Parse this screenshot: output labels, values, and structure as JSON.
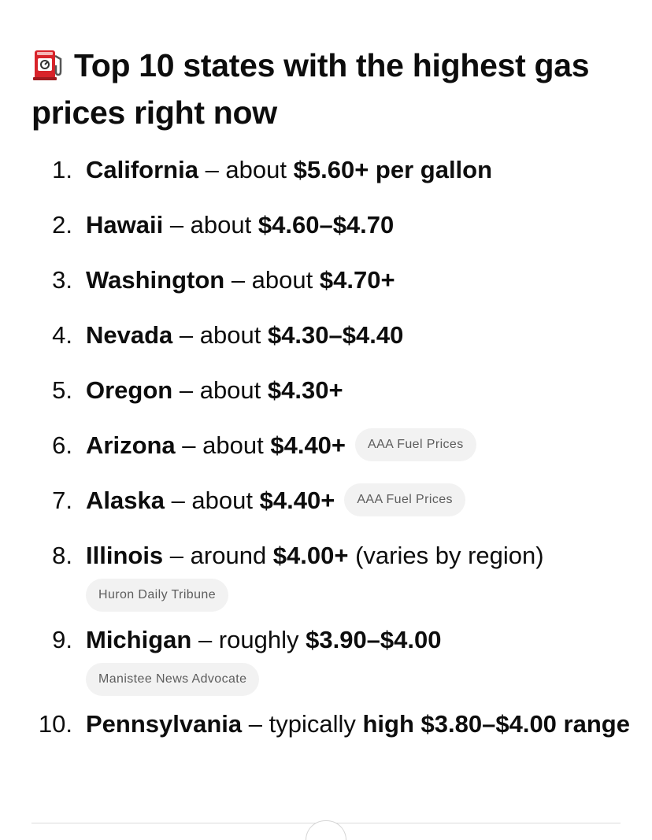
{
  "header": {
    "icon": "fuel-pump-icon",
    "title": "Top 10 states with the highest gas prices right now"
  },
  "items": [
    {
      "num": "1.",
      "state": "California",
      "sep": " – about ",
      "price": "$5.60+ per gallon"
    },
    {
      "num": "2.",
      "state": "Hawaii",
      "sep": " – about ",
      "price": "$4.60–$4.70"
    },
    {
      "num": "3.",
      "state": "Washington",
      "sep": " – about ",
      "price": "$4.70+"
    },
    {
      "num": "4.",
      "state": "Nevada",
      "sep": " – about ",
      "price": "$4.30–$4.40"
    },
    {
      "num": "5.",
      "state": "Oregon",
      "sep": " – about ",
      "price": "$4.30+"
    },
    {
      "num": "6.",
      "state": "Arizona",
      "sep": " – about ",
      "price": "$4.40+",
      "source": "AAA Fuel Prices"
    },
    {
      "num": "7.",
      "state": "Alaska",
      "sep": " – about ",
      "price": "$4.40+",
      "source": "AAA Fuel Prices"
    },
    {
      "num": "8.",
      "state": "Illinois",
      "sep": " – around ",
      "price": "$4.00+",
      "note": " (varies by region)",
      "source": "Huron Daily Tribune"
    },
    {
      "num": "9.",
      "state": "Michigan",
      "sep": " – roughly ",
      "price": "$3.90–$4.00",
      "source": "Manistee News Advocate"
    },
    {
      "num": "10.",
      "state": "Pennsylvania",
      "sep": " – typically ",
      "price": "high $3.80–$4.00 range"
    }
  ],
  "colors": {
    "text": "#0d0d0d",
    "chip_bg": "#f2f2f2",
    "chip_text": "#5d5d5d",
    "pump_red": "#d8232a"
  }
}
